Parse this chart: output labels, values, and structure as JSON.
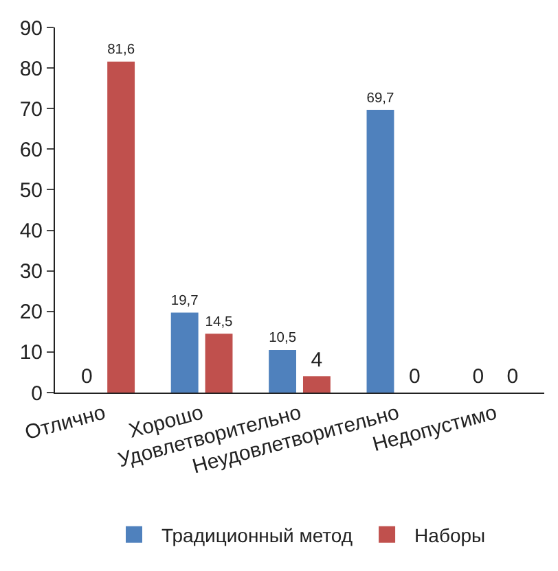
{
  "chart_data": {
    "type": "bar",
    "categories": [
      "Отлично",
      "Хорошо",
      "Удовлетворительно",
      "Неудовлетворительно",
      "Недопустимо"
    ],
    "series": [
      {
        "name": "Традиционный метод",
        "color": "#4f81bd",
        "values": [
          0,
          19.7,
          10.5,
          69.7,
          0
        ],
        "value_labels": [
          "0",
          "19,7",
          "10,5",
          "69,7",
          "0"
        ]
      },
      {
        "name": "Наборы",
        "color": "#c0504d",
        "values": [
          81.6,
          14.5,
          4,
          0,
          0
        ],
        "value_labels": [
          "81,6",
          "14,5",
          "4",
          "0",
          "0"
        ]
      }
    ],
    "ylim": [
      0,
      90
    ],
    "yticks": [
      0,
      10,
      20,
      30,
      40,
      50,
      60,
      70,
      80,
      90
    ],
    "legend": "bottom"
  }
}
